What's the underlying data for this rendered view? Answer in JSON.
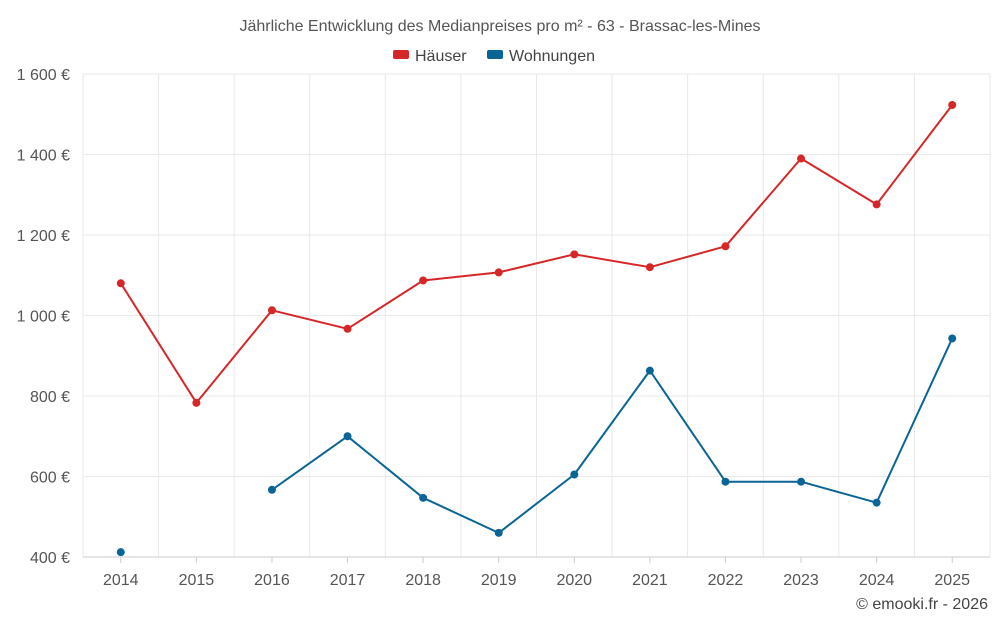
{
  "chart_data": {
    "type": "line",
    "title": "Jährliche Entwicklung des Medianpreises pro m² - 63 - Brassac-les-Mines",
    "xlabel": "",
    "ylabel": "",
    "categories": [
      "2014",
      "2015",
      "2016",
      "2017",
      "2018",
      "2019",
      "2020",
      "2021",
      "2022",
      "2023",
      "2024",
      "2025"
    ],
    "ylim": [
      400,
      1600
    ],
    "yticks": [
      400,
      600,
      800,
      1000,
      1200,
      1400,
      1600
    ],
    "ytick_labels": [
      "400 €",
      "600 €",
      "800 €",
      "1 000 €",
      "1 200 €",
      "1 400 €",
      "1 600 €"
    ],
    "grid": true,
    "legend_position": "top-center",
    "series": [
      {
        "name": "Häuser",
        "color": "#d62728",
        "values": [
          1080,
          783,
          1013,
          967,
          1087,
          1107,
          1152,
          1120,
          1172,
          1390,
          1276,
          1523
        ]
      },
      {
        "name": "Wohnungen",
        "color": "#0a6496",
        "values": [
          412,
          null,
          567,
          700,
          547,
          460,
          605,
          863,
          587,
          587,
          535,
          943
        ]
      }
    ],
    "credit": "© emooki.fr - 2026"
  }
}
